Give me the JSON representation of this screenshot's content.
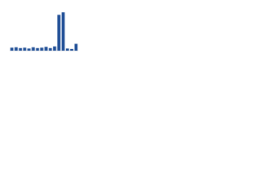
{
  "chart_data": {
    "type": "bar",
    "categories": [
      null,
      null,
      null,
      null,
      null,
      null,
      null,
      null,
      null,
      null,
      null,
      null,
      null,
      null,
      null,
      null
    ],
    "values": [
      7,
      8,
      6,
      7,
      5,
      8,
      6,
      7,
      9,
      6,
      10,
      84,
      90,
      5,
      4,
      16
    ],
    "color": "#1f4e96",
    "ylim": [
      0,
      100
    ]
  }
}
